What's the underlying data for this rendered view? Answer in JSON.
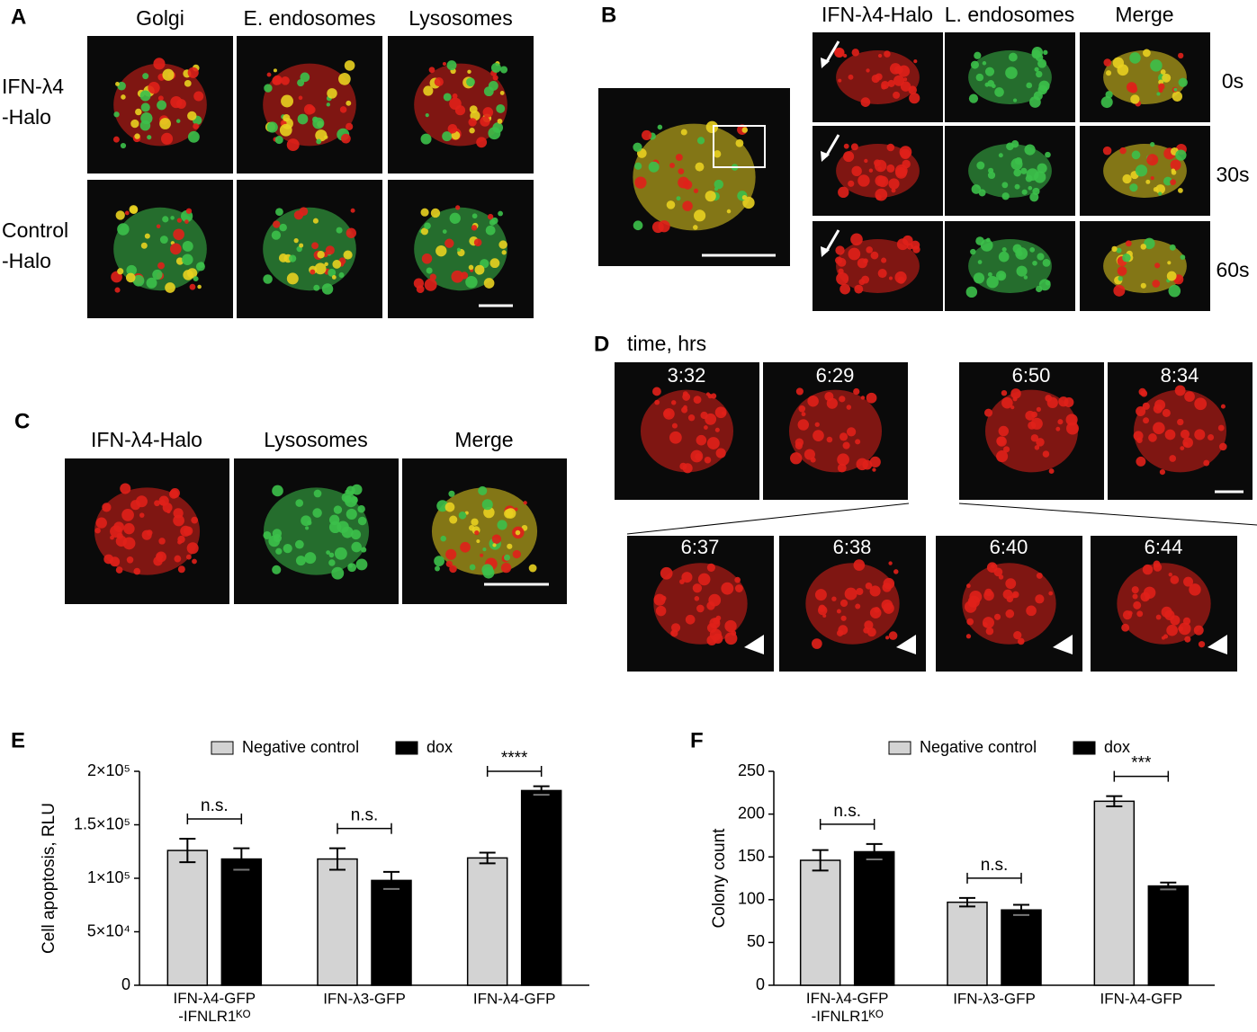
{
  "panel_labels": [
    "A",
    "B",
    "C",
    "D",
    "E",
    "F"
  ],
  "panel_a": {
    "columns": [
      "Golgi",
      "E. endosomes",
      "Lysosomes"
    ],
    "rows": [
      [
        "IFN-λ4",
        "-Halo"
      ],
      [
        "Control",
        "-Halo"
      ]
    ]
  },
  "panel_b": {
    "columns": [
      "IFN-λ4-Halo",
      "L. endosomes",
      "Merge"
    ],
    "times": [
      "0s",
      "30s",
      "60s"
    ]
  },
  "panel_c": {
    "columns": [
      "IFN-λ4-Halo",
      "Lysosomes",
      "Merge"
    ]
  },
  "panel_d": {
    "title": "time, hrs",
    "top_times": [
      "3:32",
      "6:29",
      "6:50",
      "8:34"
    ],
    "bottom_times": [
      "6:37",
      "6:38",
      "6:40",
      "6:44"
    ]
  },
  "chart_data": [
    {
      "type": "bar",
      "y_label": "Cell apoptosis, RLU",
      "categories": [
        "IFN-λ4-GFP\n-IFNLR1ᴷᴼ",
        "IFN-λ3-GFP",
        "IFN-λ4-GFP"
      ],
      "series": [
        {
          "name": "Negative control",
          "color": "#d3d3d3",
          "values": [
            126000,
            118000,
            119000
          ],
          "errors": [
            11000,
            10000,
            5000
          ]
        },
        {
          "name": "dox",
          "color": "#000000",
          "values": [
            118000,
            98000,
            182000
          ],
          "errors": [
            10000,
            8000,
            4000
          ]
        }
      ],
      "significance": [
        "n.s.",
        "n.s.",
        "****"
      ],
      "ylim": [
        0,
        200000
      ],
      "yticks": [
        0,
        {
          "value": 50000,
          "label": "5×10⁴"
        },
        {
          "value": 100000,
          "label": "1×10⁵"
        },
        {
          "value": 150000,
          "label": "1.5×10⁵"
        },
        {
          "value": 200000,
          "label": "2×10⁵"
        }
      ]
    },
    {
      "type": "bar",
      "y_label": "Colony count",
      "categories": [
        "IFN-λ4-GFP\n-IFNLR1ᴷᴼ",
        "IFN-λ3-GFP",
        "IFN-λ4-GFP"
      ],
      "series": [
        {
          "name": "Negative control",
          "color": "#d3d3d3",
          "values": [
            146,
            97,
            215
          ],
          "errors": [
            12,
            5,
            6
          ]
        },
        {
          "name": "dox",
          "color": "#000000",
          "values": [
            156,
            88,
            116
          ],
          "errors": [
            9,
            6,
            4
          ]
        }
      ],
      "significance": [
        "n.s.",
        "n.s.",
        "***"
      ],
      "ylim": [
        0,
        250
      ],
      "yticks": [
        0,
        50,
        100,
        150,
        200,
        250
      ]
    }
  ]
}
